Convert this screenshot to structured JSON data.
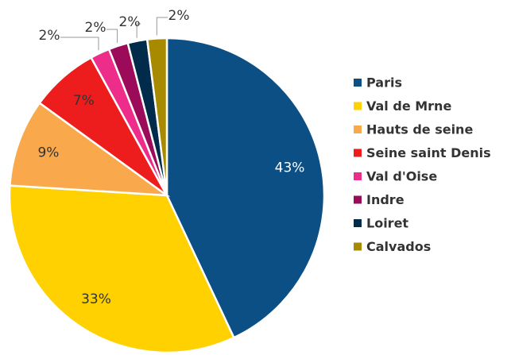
{
  "chart_data": {
    "type": "pie",
    "categories": [
      "Paris",
      "Val de Mrne",
      "Hauts de seine",
      "Seine saint Denis",
      "Val d'Oise",
      "Indre",
      "Loiret",
      "Calvados"
    ],
    "values": [
      43,
      33,
      9,
      7,
      2,
      2,
      2,
      2
    ],
    "value_labels": [
      "43%",
      "33%",
      "9%",
      "7%",
      "2%",
      "2%",
      "2%",
      "2%"
    ],
    "colors": [
      "#0b4f85",
      "#ffd100",
      "#f9a94b",
      "#ee1d1d",
      "#ee2d8a",
      "#9c0a5a",
      "#002b4a",
      "#a88a00"
    ],
    "legend": "right"
  }
}
